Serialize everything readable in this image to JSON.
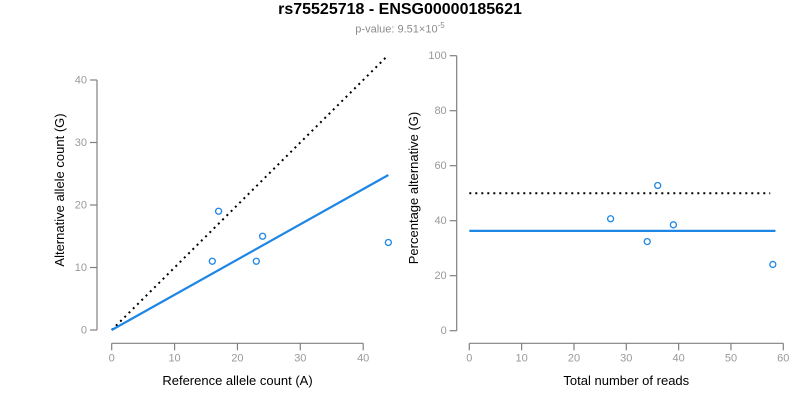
{
  "header": {
    "title": "rs75525718 - ENSG00000185621",
    "subtitle_prefix": "p-value: 9.51×10",
    "subtitle_exponent": "-5"
  },
  "colors": {
    "accent_blue": "#1e86e5",
    "dotted_black": "#000000",
    "axis_line": "#808080",
    "tick_label": "#999999",
    "axis_title": "#000000",
    "subtitle_text": "#8c8c8c",
    "background": "#ffffff"
  },
  "chart_data": [
    {
      "type": "scatter",
      "name": "allele-counts",
      "xlabel": "Reference allele count (A)",
      "ylabel": "Alternative allele count (G)",
      "xlim": [
        0,
        44
      ],
      "ylim": [
        0,
        44
      ],
      "xticks": [
        0,
        10,
        20,
        30,
        40
      ],
      "yticks": [
        0,
        10,
        20,
        30,
        40
      ],
      "grid": false,
      "legend": false,
      "points": [
        {
          "x": 17,
          "y": 19
        },
        {
          "x": 24,
          "y": 15
        },
        {
          "x": 16,
          "y": 11
        },
        {
          "x": 23,
          "y": 11
        },
        {
          "x": 44,
          "y": 14
        }
      ],
      "lines": [
        {
          "name": "identity-line",
          "style": "dotted",
          "color": "#000000",
          "from": [
            0,
            0
          ],
          "to": [
            43.8,
            43.8
          ]
        },
        {
          "name": "regression-line",
          "style": "solid",
          "color": "#1e86e5",
          "from": [
            0,
            0
          ],
          "to": [
            44,
            24.8
          ]
        }
      ]
    },
    {
      "type": "scatter",
      "name": "percentage-alternative",
      "xlabel": "Total number of reads",
      "ylabel": "Percentage alternative (G)",
      "xlim": [
        0,
        60
      ],
      "ylim": [
        0,
        100
      ],
      "xticks": [
        0,
        10,
        20,
        30,
        40,
        50,
        60
      ],
      "yticks": [
        0,
        20,
        40,
        60,
        80,
        100
      ],
      "grid": false,
      "legend": false,
      "points": [
        {
          "x": 36,
          "y": 52.8
        },
        {
          "x": 27,
          "y": 40.7
        },
        {
          "x": 39,
          "y": 38.5
        },
        {
          "x": 34,
          "y": 32.4
        },
        {
          "x": 58,
          "y": 24.1
        }
      ],
      "lines": [
        {
          "name": "expected-50pct-line",
          "style": "dotted",
          "color": "#000000",
          "from": [
            0,
            50
          ],
          "to": [
            57.5,
            50
          ]
        },
        {
          "name": "mean-percentage-line",
          "style": "solid",
          "color": "#1e86e5",
          "from": [
            0,
            36.3
          ],
          "to": [
            58.5,
            36.3
          ]
        }
      ]
    }
  ]
}
